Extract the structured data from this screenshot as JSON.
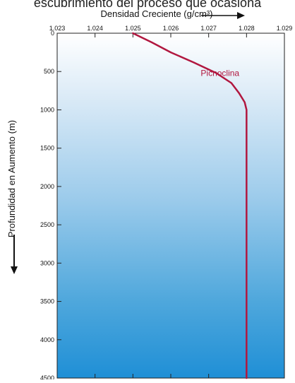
{
  "page_top_text": "escubrimiento del proceso que ocasiona",
  "chart_data": {
    "type": "line",
    "title": "",
    "xlabel": "Densidad Creciente (g/cm³)",
    "ylabel": "Profundidad en Aumento (m)",
    "x_axis_position": "top",
    "y_axis_inverted": true,
    "xlim": [
      1.023,
      1.029
    ],
    "ylim": [
      0,
      4500
    ],
    "x_ticks": [
      1.023,
      1.024,
      1.025,
      1.026,
      1.027,
      1.028,
      1.029
    ],
    "x_tick_labels": [
      "1.023",
      "1.024",
      "1.025",
      "1.026",
      "1.027",
      "1.028",
      "1.029"
    ],
    "y_ticks": [
      0,
      500,
      1000,
      1500,
      2000,
      2500,
      3000,
      3500,
      4000,
      4500
    ],
    "y_tick_labels": [
      "0",
      "500",
      "1000",
      "1500",
      "2000",
      "2500",
      "3000",
      "3500",
      "4000",
      "4500"
    ],
    "grid": false,
    "background_gradient": [
      "#ffffff",
      "#dcebf7",
      "#9ccbeb",
      "#4ea7dc",
      "#1f8fd6"
    ],
    "series": [
      {
        "name": "",
        "color": "#b1173f",
        "x": [
          1.025,
          1.0255,
          1.026,
          1.0266,
          1.0272,
          1.0276,
          1.0278,
          1.02795,
          1.028,
          1.028,
          1.028
        ],
        "y": [
          0,
          120,
          250,
          380,
          520,
          650,
          780,
          900,
          1000,
          2500,
          4500
        ]
      }
    ],
    "annotations": [
      {
        "text": "Picnoclina",
        "x": 1.0273,
        "y": 560,
        "color": "#b1173f"
      }
    ]
  }
}
